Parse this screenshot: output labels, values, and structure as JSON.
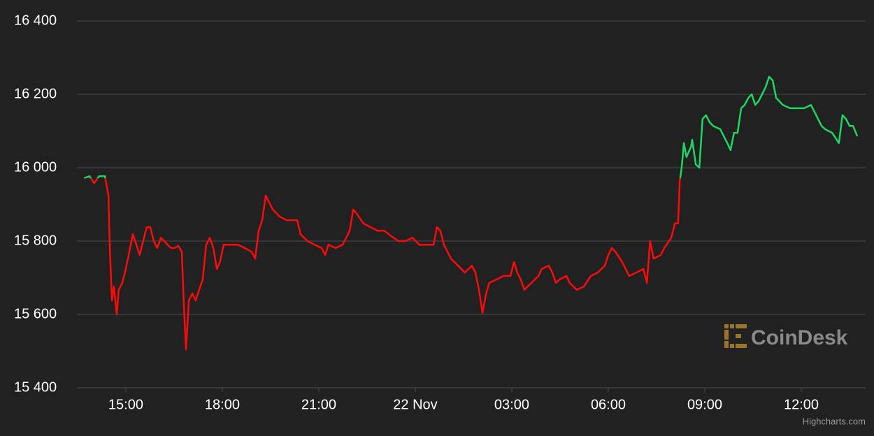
{
  "chart_data": {
    "type": "line",
    "watermark": "CoinDesk",
    "credits": "Highcharts.com",
    "grid": true,
    "ylim": [
      15400,
      16400
    ],
    "yticks": [
      {
        "value": 15400,
        "label": "15 400"
      },
      {
        "value": 15600,
        "label": "15 600"
      },
      {
        "value": 15800,
        "label": "15 800"
      },
      {
        "value": 16000,
        "label": "16 000"
      },
      {
        "value": 16200,
        "label": "16 200"
      },
      {
        "value": 16400,
        "label": "16 400"
      }
    ],
    "xlim": [
      13.48,
      38.0
    ],
    "xticks": [
      {
        "value": 15,
        "label": "15:00"
      },
      {
        "value": 18,
        "label": "18:00"
      },
      {
        "value": 21,
        "label": "21:00"
      },
      {
        "value": 24,
        "label": "22 Nov"
      },
      {
        "value": 27,
        "label": "03:00"
      },
      {
        "value": 30,
        "label": "06:00"
      },
      {
        "value": 33,
        "label": "09:00"
      },
      {
        "value": 36,
        "label": "12:00"
      }
    ],
    "series": [
      {
        "color": "#1ed760",
        "negativeColor": "#ff0a0a",
        "threshold": 15971,
        "x": [
          13.7,
          13.87,
          14.02,
          14.17,
          14.35,
          14.46,
          14.5,
          14.57,
          14.63,
          14.72,
          14.78,
          14.89,
          15.0,
          15.11,
          15.22,
          15.33,
          15.43,
          15.54,
          15.65,
          15.76,
          15.87,
          15.98,
          16.09,
          16.2,
          16.3,
          16.41,
          16.52,
          16.63,
          16.74,
          16.8,
          16.87,
          16.96,
          17.07,
          17.17,
          17.28,
          17.39,
          17.5,
          17.61,
          17.72,
          17.83,
          17.93,
          18.04,
          18.26,
          18.48,
          18.7,
          18.91,
          19.02,
          19.13,
          19.24,
          19.35,
          19.46,
          19.57,
          19.78,
          20.0,
          20.33,
          20.43,
          20.65,
          20.87,
          21.09,
          21.2,
          21.3,
          21.52,
          21.74,
          21.96,
          22.07,
          22.17,
          22.39,
          22.61,
          22.83,
          23.04,
          23.26,
          23.48,
          23.7,
          23.91,
          24.13,
          24.57,
          24.67,
          24.78,
          24.89,
          25.11,
          25.33,
          25.54,
          25.76,
          25.87,
          25.98,
          26.09,
          26.2,
          26.3,
          26.52,
          26.74,
          26.96,
          27.07,
          27.17,
          27.28,
          27.39,
          27.61,
          27.83,
          27.93,
          28.15,
          28.26,
          28.37,
          28.48,
          28.7,
          28.8,
          29.02,
          29.24,
          29.46,
          29.67,
          29.89,
          30.0,
          30.11,
          30.22,
          30.43,
          30.65,
          30.87,
          31.09,
          31.2,
          31.3,
          31.41,
          31.63,
          31.74,
          31.96,
          32.07,
          32.17,
          32.22,
          32.28,
          32.35,
          32.43,
          32.57,
          32.61,
          32.72,
          32.83,
          32.93,
          33.04,
          33.15,
          33.26,
          33.48,
          33.7,
          33.8,
          33.91,
          34.02,
          34.13,
          34.24,
          34.35,
          34.46,
          34.57,
          34.67,
          34.78,
          34.89,
          35.0,
          35.11,
          35.22,
          35.43,
          35.65,
          36.09,
          36.3,
          36.41,
          36.52,
          36.63,
          36.74,
          36.96,
          37.17,
          37.28,
          37.39,
          37.5,
          37.61,
          37.74
        ],
        "values": [
          15971,
          15977,
          15958,
          15977,
          15977,
          15924,
          15790,
          15638,
          15676,
          15600,
          15667,
          15686,
          15724,
          15771,
          15819,
          15790,
          15762,
          15800,
          15838,
          15838,
          15800,
          15781,
          15809,
          15800,
          15790,
          15781,
          15781,
          15787,
          15771,
          15638,
          15505,
          15638,
          15657,
          15638,
          15667,
          15695,
          15790,
          15809,
          15781,
          15724,
          15743,
          15790,
          15790,
          15790,
          15781,
          15771,
          15752,
          15828,
          15857,
          15924,
          15905,
          15886,
          15867,
          15857,
          15857,
          15819,
          15800,
          15790,
          15781,
          15762,
          15790,
          15781,
          15790,
          15828,
          15886,
          15876,
          15848,
          15838,
          15828,
          15828,
          15813,
          15800,
          15800,
          15809,
          15790,
          15790,
          15838,
          15828,
          15790,
          15752,
          15733,
          15714,
          15733,
          15714,
          15667,
          15604,
          15657,
          15686,
          15695,
          15705,
          15705,
          15743,
          15714,
          15695,
          15667,
          15686,
          15705,
          15724,
          15733,
          15714,
          15686,
          15695,
          15705,
          15686,
          15667,
          15676,
          15705,
          15714,
          15733,
          15762,
          15781,
          15771,
          15743,
          15705,
          15714,
          15724,
          15686,
          15800,
          15752,
          15762,
          15781,
          15809,
          15848,
          15848,
          15962,
          16000,
          16067,
          16029,
          16057,
          16076,
          16009,
          16000,
          16133,
          16143,
          16124,
          16114,
          16105,
          16067,
          16048,
          16095,
          16095,
          16162,
          16171,
          16190,
          16200,
          16171,
          16181,
          16200,
          16219,
          16248,
          16238,
          16190,
          16171,
          16162,
          16162,
          16171,
          16152,
          16133,
          16114,
          16105,
          16095,
          16067,
          16143,
          16133,
          16114,
          16114,
          16086
        ]
      }
    ]
  }
}
